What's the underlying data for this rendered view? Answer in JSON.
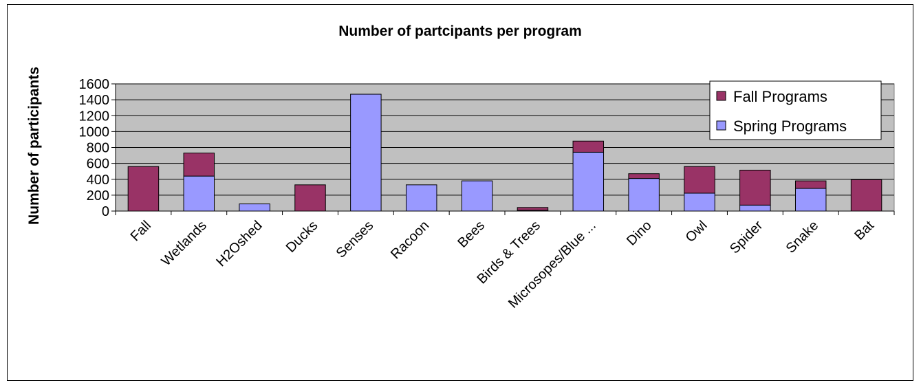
{
  "chart_data": {
    "type": "bar",
    "stacked": true,
    "title": "Number of partcipants per program",
    "xlabel": "",
    "ylabel": "Number of participants",
    "ylim": [
      0,
      1600
    ],
    "yticks": [
      0,
      200,
      400,
      600,
      800,
      1000,
      1200,
      1400,
      1600
    ],
    "grid": true,
    "legend_position": "top-right",
    "categories": [
      "Fall",
      "Wetlands",
      "H2Oshed",
      "Ducks",
      "Senses",
      "Racoon",
      "Bees",
      "Birds & Trees",
      "Microsopes/Blue ...",
      "Dino",
      "Owl",
      "Spider",
      "Snake",
      "Bat"
    ],
    "series": [
      {
        "name": "Spring Programs",
        "color": "#9999ff",
        "values": [
          0,
          440,
          90,
          0,
          1470,
          330,
          380,
          10,
          740,
          410,
          225,
          75,
          285,
          0
        ]
      },
      {
        "name": "Fall Programs",
        "color": "#993366",
        "values": [
          560,
          290,
          0,
          330,
          0,
          0,
          0,
          35,
          140,
          60,
          335,
          440,
          95,
          395
        ]
      }
    ],
    "legend": [
      "Fall Programs",
      "Spring Programs"
    ]
  },
  "colors": {
    "plot_background": "#c0c0c0",
    "gridline": "#000000"
  }
}
